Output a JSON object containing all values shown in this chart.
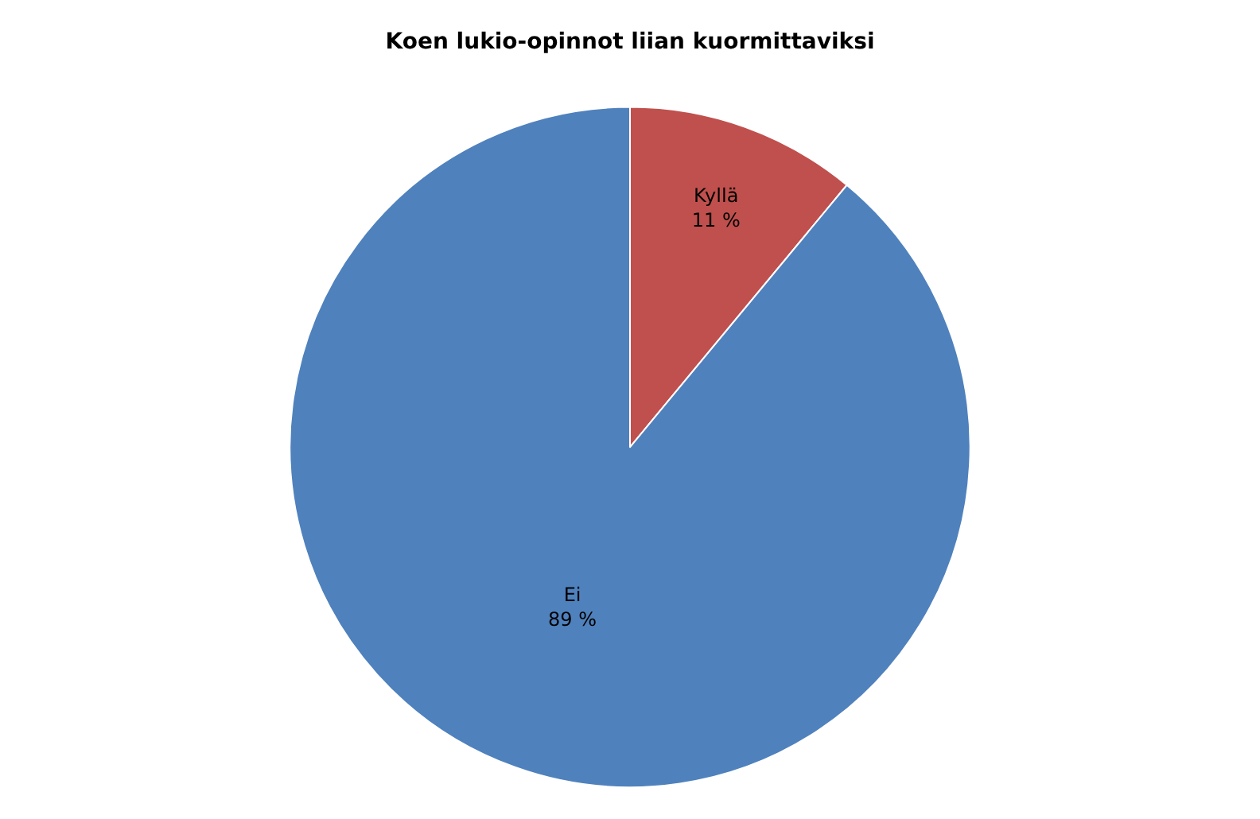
{
  "chart_data": {
    "type": "pie",
    "title": "Koen lukio-opinnot liian kuormittaviksi",
    "categories": [
      "Kyllä",
      "Ei"
    ],
    "values": [
      11,
      89
    ],
    "value_labels": [
      "11 %",
      "89 %"
    ],
    "colors": [
      "#c0504d",
      "#4f81bd"
    ],
    "legend": false
  }
}
